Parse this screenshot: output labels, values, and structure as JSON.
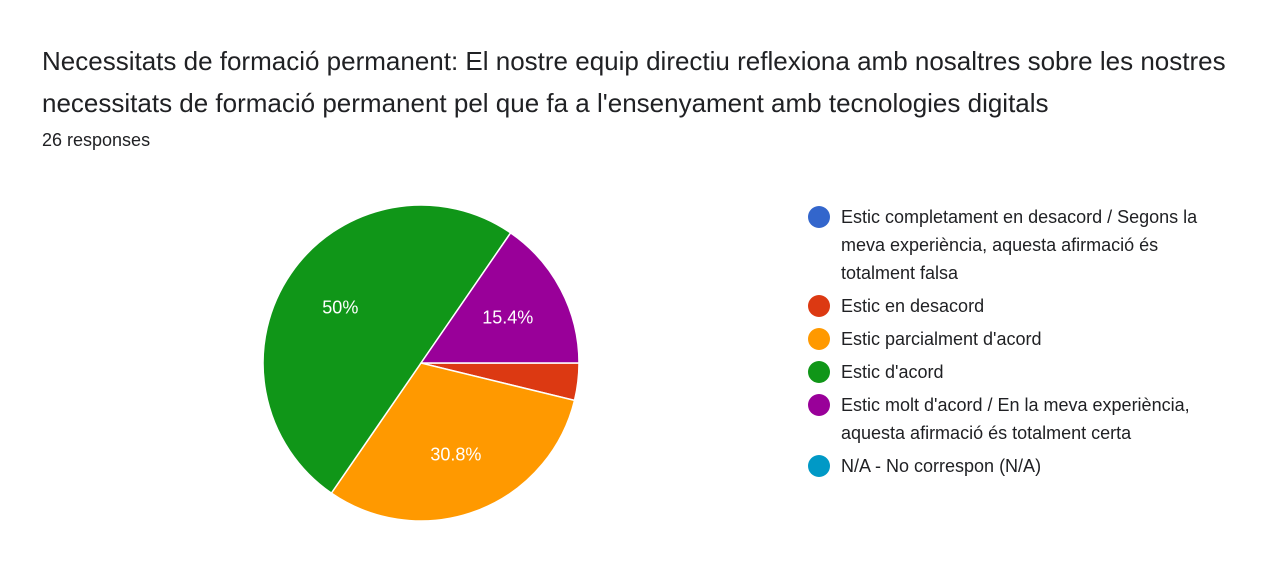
{
  "header": {
    "title": "Necessitats de formació permanent: El nostre equip directiu reflexiona amb nosaltres sobre les nostres necessitats de formació permanent pel que fa a l'ensenyament amb tecnologies digitals",
    "responses": "26 responses"
  },
  "chart_data": {
    "type": "pie",
    "categories": [
      "Estic completament en desacord / Segons la meva experiència, aquesta afirmació és totalment falsa",
      "Estic en desacord",
      "Estic parcialment d'acord",
      "Estic d'acord",
      "Estic molt d'acord / En la meva experiència, aquesta afirmació és totalment certa",
      "N/A - No correspon (N/A)"
    ],
    "values": [
      0,
      3.8,
      30.8,
      50,
      15.4,
      0
    ],
    "colors": [
      "#3366cc",
      "#dc3912",
      "#ff9900",
      "#109618",
      "#990099",
      "#0099c6"
    ],
    "data_labels": [
      "",
      "",
      "30.8%",
      "50%",
      "15.4%",
      ""
    ],
    "legend_position": "right"
  }
}
